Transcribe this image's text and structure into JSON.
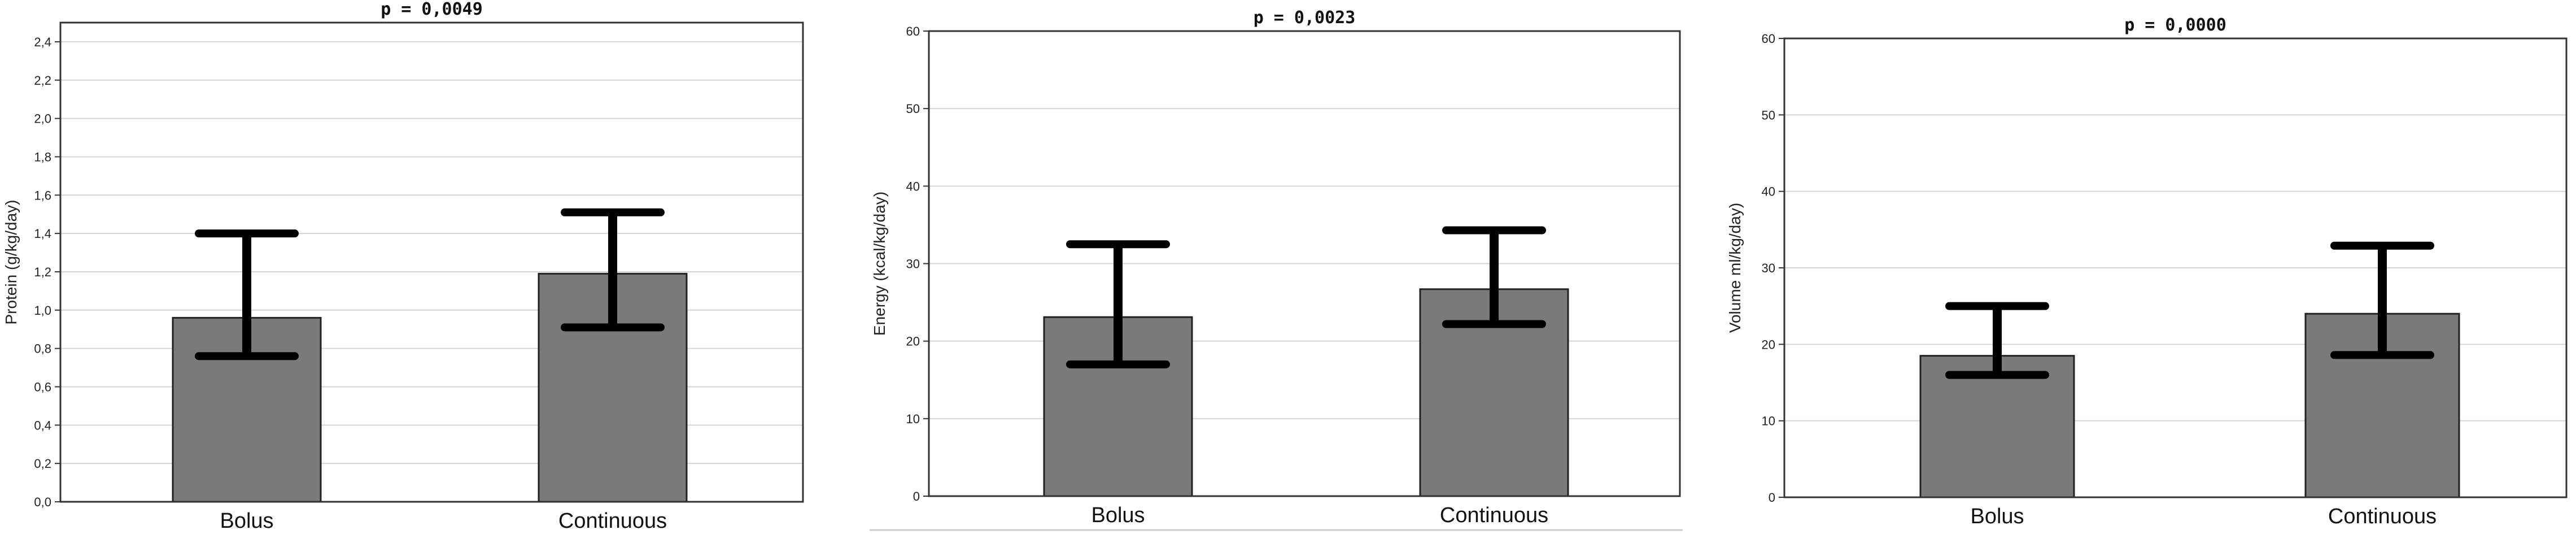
{
  "chart_data": [
    {
      "type": "bar",
      "title": "p = 0,0049",
      "ylabel": "Protein (g/kg/day)",
      "categories": [
        "Bolus",
        "Continuous"
      ],
      "values": [
        0.96,
        1.19
      ],
      "error_low": [
        0.76,
        0.91
      ],
      "error_high": [
        1.4,
        1.51
      ],
      "ylim": [
        0,
        2.5
      ],
      "yticks": [
        "0,0",
        "0,2",
        "0,4",
        "0,6",
        "0,8",
        "1,0",
        "1,2",
        "1,4",
        "1,6",
        "1,8",
        "2,0",
        "2,2",
        "2,4"
      ],
      "ytick_values": [
        0,
        0.2,
        0.4,
        0.6,
        0.8,
        1.0,
        1.2,
        1.4,
        1.6,
        1.8,
        2.0,
        2.2,
        2.4
      ],
      "grid": true
    },
    {
      "type": "bar",
      "title": "p = 0,0023",
      "ylabel": "Energy (kcal/kg/day)",
      "categories": [
        "Bolus",
        "Continuous"
      ],
      "values": [
        23.1,
        26.7
      ],
      "error_low": [
        17.0,
        22.2
      ],
      "error_high": [
        32.5,
        34.3
      ],
      "ylim": [
        0,
        60
      ],
      "yticks": [
        "0",
        "10",
        "20",
        "30",
        "40",
        "50",
        "60"
      ],
      "ytick_values": [
        0,
        10,
        20,
        30,
        40,
        50,
        60
      ],
      "grid": true
    },
    {
      "type": "bar",
      "title": "p = 0,0000",
      "ylabel": "Volume ml/kg/day)",
      "categories": [
        "Bolus",
        "Continuous"
      ],
      "values": [
        18.5,
        24.0
      ],
      "error_low": [
        16.0,
        18.6
      ],
      "error_high": [
        25.0,
        32.9
      ],
      "ylim": [
        0,
        60
      ],
      "yticks": [
        "0",
        "10",
        "20",
        "30",
        "40",
        "50",
        "60"
      ],
      "ytick_values": [
        0,
        10,
        20,
        30,
        40,
        50,
        60
      ],
      "grid": true
    }
  ],
  "colors": {
    "bar_fill": "#7a7a7a",
    "bar_stroke": "#222222",
    "error_bar": "#000000",
    "grid": "#d4d4d4",
    "frame": "#333333"
  }
}
